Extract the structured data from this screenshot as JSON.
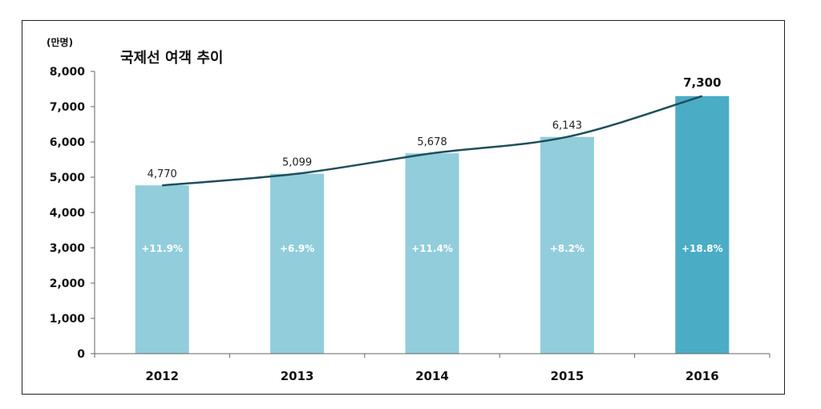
{
  "chart_data": {
    "type": "bar",
    "title": "국제선 여객 추이",
    "unit_label": "(만명)",
    "xlabel": "",
    "ylabel": "(만명)",
    "ylim": [
      0,
      8000
    ],
    "yticks": [
      0,
      1000,
      2000,
      3000,
      4000,
      5000,
      6000,
      7000,
      8000
    ],
    "ytick_labels": [
      "0",
      "1,000",
      "2,000",
      "3,000",
      "4,000",
      "5,000",
      "6,000",
      "7,000",
      "8,000"
    ],
    "categories": [
      "2012",
      "2013",
      "2014",
      "2015",
      "2016"
    ],
    "values": [
      4770,
      5099,
      5678,
      6143,
      7300
    ],
    "value_labels": [
      "4,770",
      "5,099",
      "5,678",
      "6,143",
      "7,300"
    ],
    "growth_labels": [
      "+11.9%",
      "+6.9%",
      "+11.4%",
      "+8.2%",
      "+18.8%"
    ],
    "highlight_index": 4,
    "trendline": true,
    "grid": false,
    "legend": "none",
    "colors": {
      "bar": "#92cddc",
      "bar_highlight": "#4bacc6",
      "trendline": "#1f4e5a",
      "axis": "#666666"
    }
  }
}
